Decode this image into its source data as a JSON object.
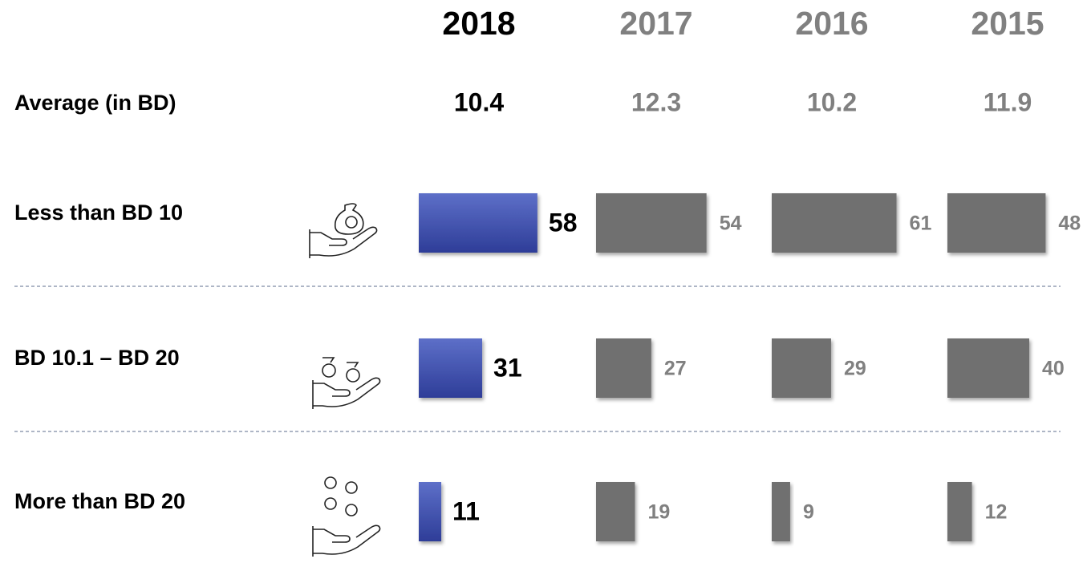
{
  "chart_data": {
    "type": "bar",
    "average_label": "Average (in BD)",
    "categories": [
      "Less than BD 10",
      "BD 10.1 – BD 20",
      "More than BD 20"
    ],
    "series": [
      {
        "name": "2018",
        "color": "#3f4fae",
        "average": 10.4,
        "values": [
          58,
          31,
          11
        ]
      },
      {
        "name": "2017",
        "color": "#707070",
        "average": 12.3,
        "values": [
          54,
          27,
          19
        ]
      },
      {
        "name": "2016",
        "color": "#707070",
        "average": 10.2,
        "values": [
          61,
          29,
          9
        ]
      },
      {
        "name": "2015",
        "color": "#707070",
        "average": 11.9,
        "values": [
          48,
          40,
          12
        ]
      }
    ]
  }
}
